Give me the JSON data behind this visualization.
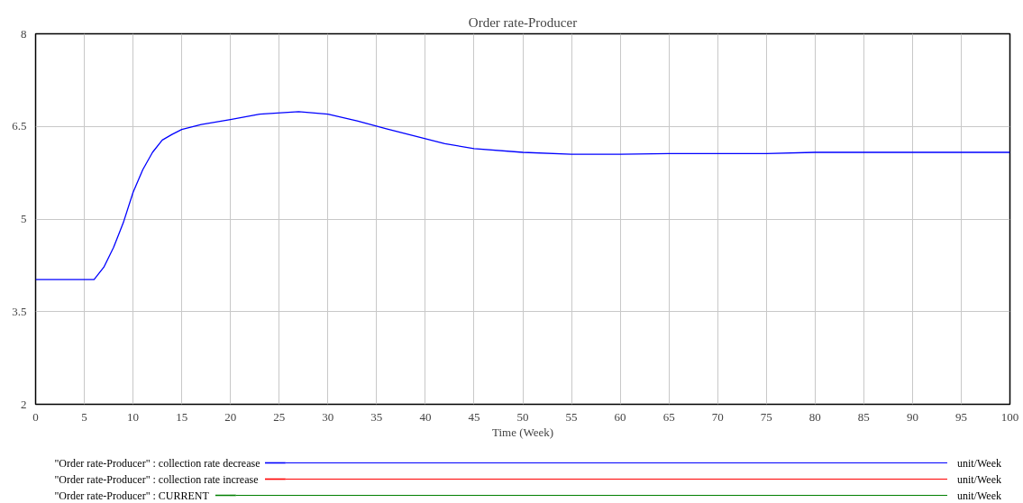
{
  "chart_data": {
    "type": "line",
    "title": "Order rate-Producer",
    "xlabel": "Time (Week)",
    "x": [
      0,
      2,
      4,
      6,
      7,
      8,
      9,
      10,
      11,
      12,
      13,
      14,
      15,
      17,
      20,
      23,
      27,
      30,
      33,
      36,
      40,
      42,
      45,
      50,
      55,
      60,
      65,
      75,
      80,
      90,
      100
    ],
    "series": [
      {
        "name": "\"Order rate-Producer\" : collection rate decrease",
        "color": "#0000ff",
        "values": [
          4.02,
          4.02,
          4.02,
          4.02,
          4.22,
          4.54,
          4.94,
          5.43,
          5.8,
          6.08,
          6.28,
          6.37,
          6.45,
          6.53,
          6.61,
          6.7,
          6.74,
          6.7,
          6.59,
          6.46,
          6.3,
          6.22,
          6.14,
          6.08,
          6.05,
          6.05,
          6.06,
          6.06,
          6.08,
          6.08,
          6.08
        ]
      },
      {
        "name": "\"Order rate-Producer\" : collection rate increase",
        "color": "#ff0000",
        "values": [
          null,
          null,
          null,
          null,
          null,
          null,
          null,
          null,
          null,
          null,
          null,
          null,
          null,
          null,
          null,
          null,
          null,
          null,
          null,
          null,
          null,
          null,
          null,
          null,
          null,
          null,
          null,
          null,
          null,
          null,
          null
        ]
      },
      {
        "name": "\"Order rate-Producer\" : CURRENT",
        "color": "#008000",
        "values": [
          null,
          null,
          null,
          null,
          null,
          null,
          null,
          null,
          null,
          null,
          null,
          null,
          null,
          null,
          null,
          null,
          null,
          null,
          null,
          null,
          null,
          null,
          null,
          null,
          null,
          null,
          null,
          null,
          null,
          null,
          null
        ]
      }
    ],
    "annotations": [
      "unit/Week",
      "unit/Week",
      "unit/Week"
    ],
    "xlim": [
      0,
      100
    ],
    "xticks": [
      0,
      5,
      10,
      15,
      20,
      25,
      30,
      35,
      40,
      45,
      50,
      55,
      60,
      65,
      70,
      75,
      80,
      85,
      90,
      95,
      100
    ],
    "ylim": [
      2,
      8
    ],
    "yticks": [
      2,
      3.5,
      5,
      6.5,
      8
    ],
    "grid": true,
    "legend": "bottom",
    "line_style": "solid",
    "marker": "none"
  }
}
